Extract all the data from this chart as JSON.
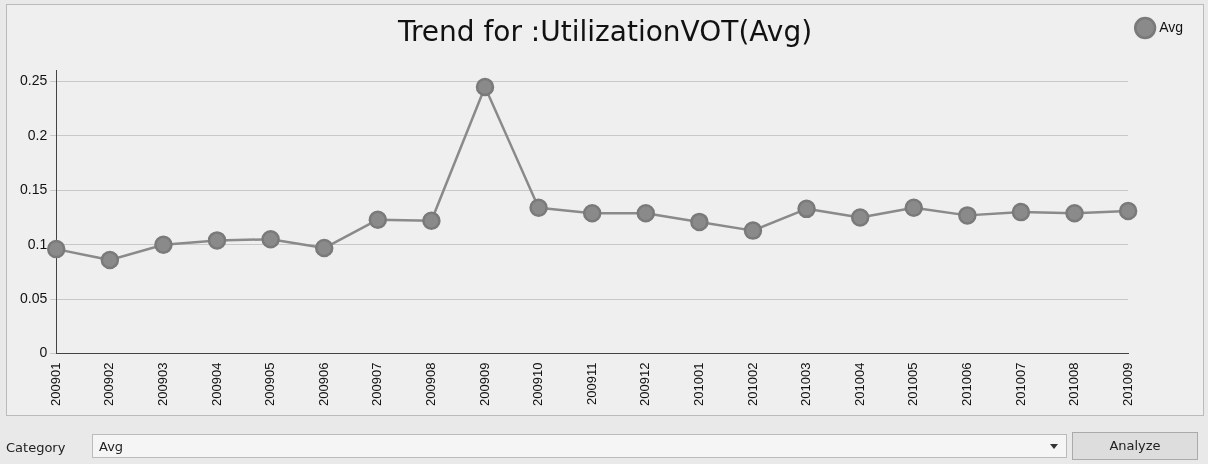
{
  "chart_data": {
    "type": "line",
    "title": "Trend for :UtilizationVOT(Avg)",
    "categories": [
      "200901",
      "200902",
      "200903",
      "200904",
      "200905",
      "200906",
      "200907",
      "200908",
      "200909",
      "200910",
      "200911",
      "200912",
      "201001",
      "201002",
      "201003",
      "201004",
      "201005",
      "201006",
      "201007",
      "201008",
      "201009"
    ],
    "series": [
      {
        "name": "Avg",
        "color": "#8a8a8a",
        "values": [
          0.096,
          0.086,
          0.1,
          0.104,
          0.105,
          0.097,
          0.123,
          0.122,
          0.245,
          0.134,
          0.129,
          0.129,
          0.121,
          0.113,
          0.133,
          0.125,
          0.134,
          0.127,
          0.13,
          0.129,
          0.131
        ]
      }
    ],
    "ylim": [
      0,
      0.26
    ],
    "yticks": [
      0,
      0.05,
      0.1,
      0.15,
      0.2,
      0.25
    ],
    "grid": "y",
    "legend": "top right",
    "marker": "circle",
    "line_style": "solid",
    "annotations": [
      "Category",
      "Avg",
      "Analyze"
    ]
  }
}
